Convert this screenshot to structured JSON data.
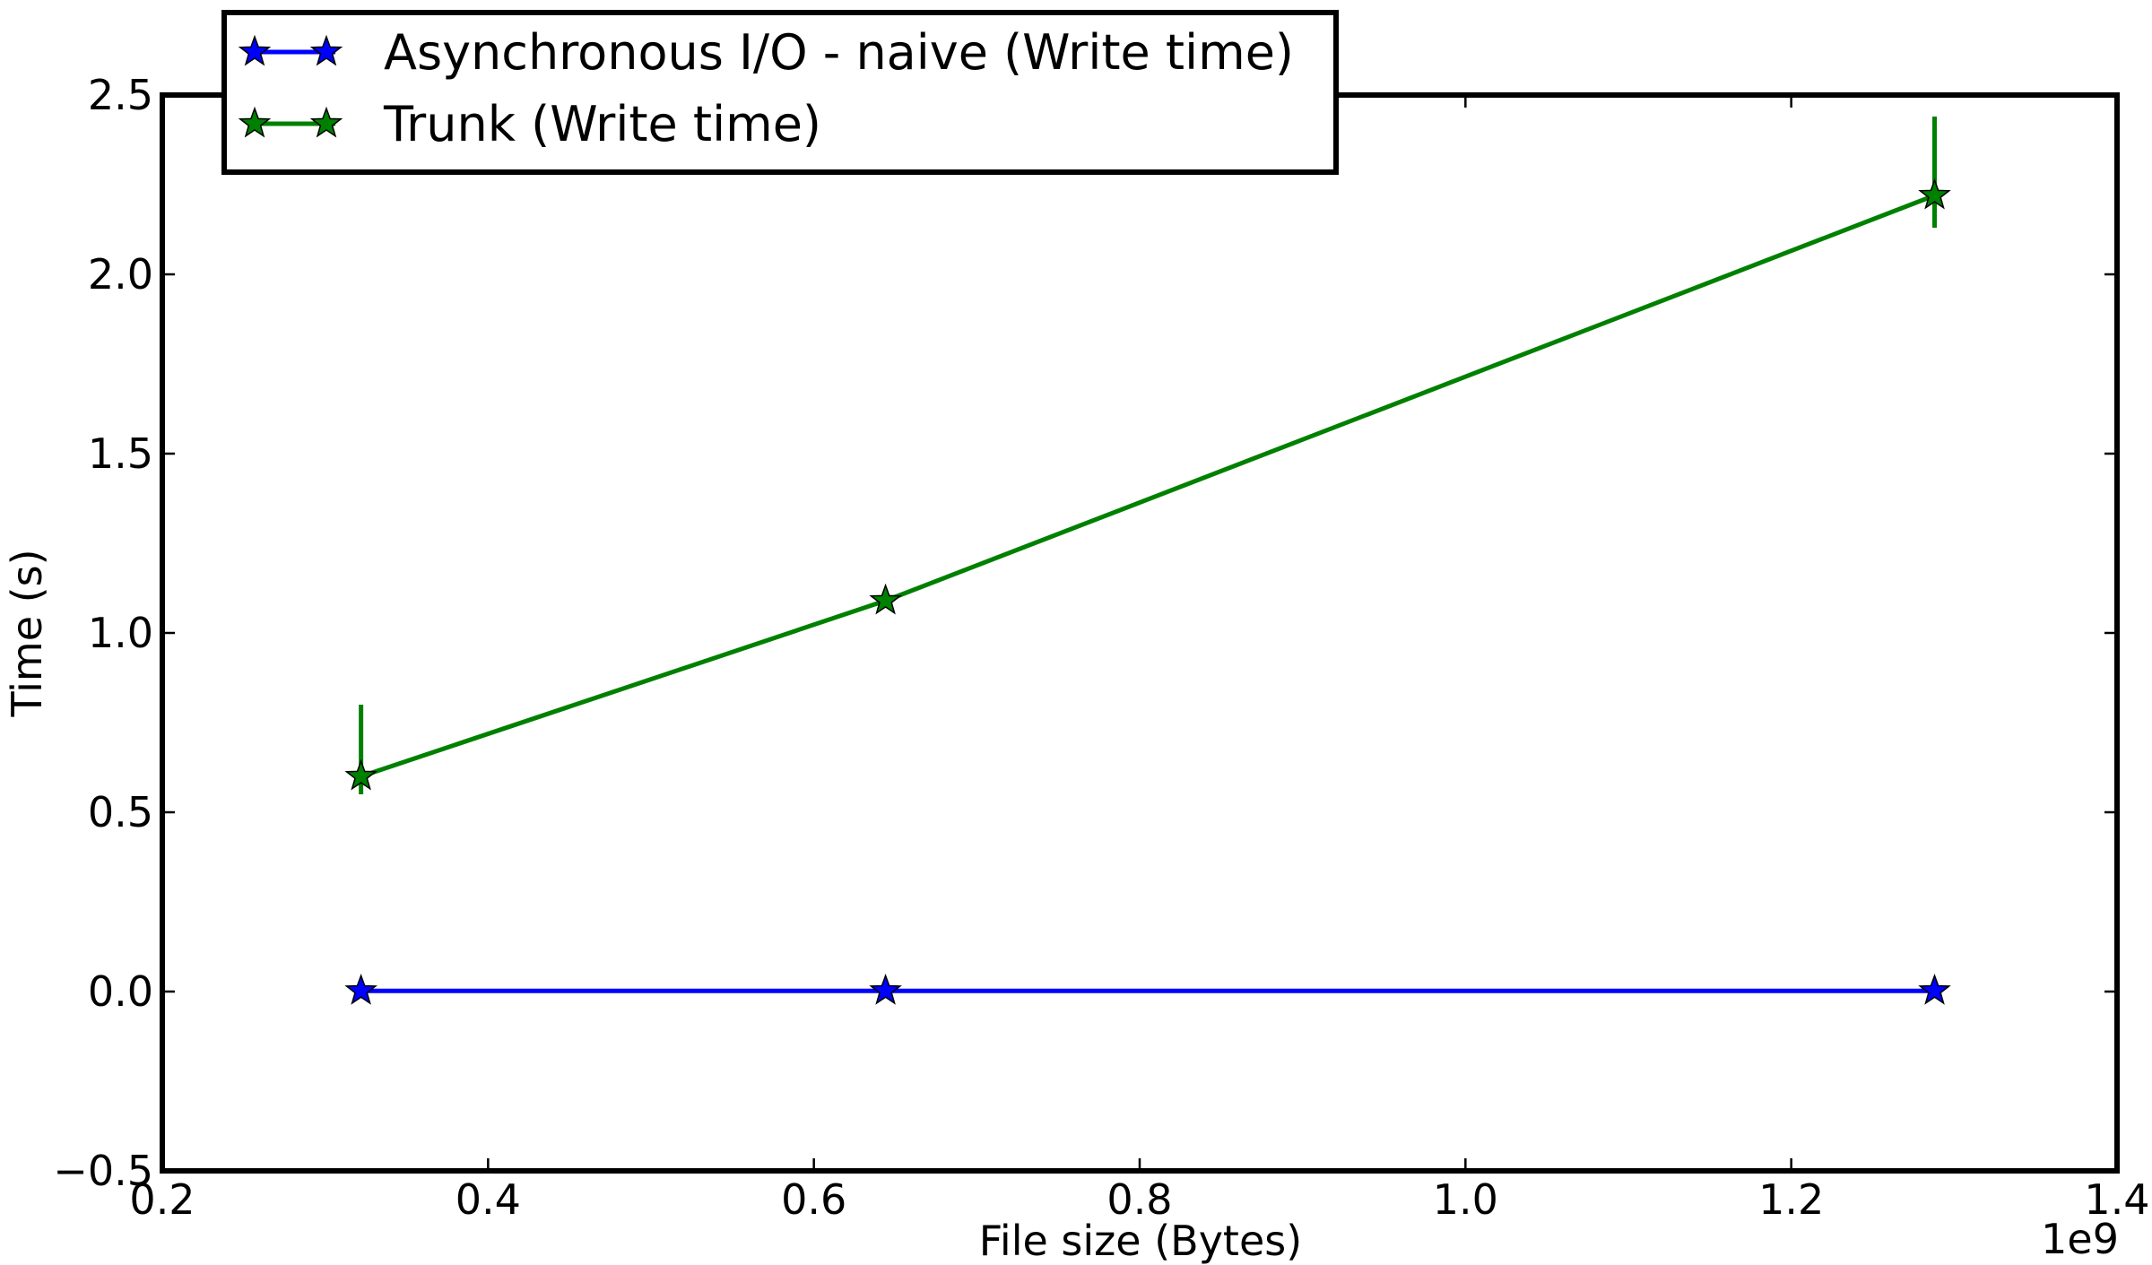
{
  "chart_data": {
    "type": "line",
    "xlabel": "File size (Bytes)",
    "ylabel": "Time (s)",
    "x_offset_label": "1e9",
    "xlim": [
      0.2,
      1.4
    ],
    "ylim": [
      -0.5,
      2.5
    ],
    "xticks": [
      0.2,
      0.4,
      0.6,
      0.8,
      1.0,
      1.2,
      1.4
    ],
    "xtick_labels": [
      "0.2",
      "0.4",
      "0.6",
      "0.8",
      "1.0",
      "1.2",
      "1.4"
    ],
    "yticks": [
      -0.5,
      0.0,
      0.5,
      1.0,
      1.5,
      2.0,
      2.5
    ],
    "ytick_labels": [
      "−0.5",
      "0.0",
      "0.5",
      "1.0",
      "1.5",
      "2.0",
      "2.5"
    ],
    "grid": false,
    "legend_position": "top-left",
    "series": [
      {
        "name": "Asynchronous I/O - naive (Write time)",
        "color": "#0000ff",
        "marker": "star",
        "x": [
          0.322,
          0.644,
          1.288
        ],
        "y": [
          0.002,
          0.002,
          0.002
        ],
        "error_low": [
          0,
          0,
          0
        ],
        "error_high": [
          0,
          0,
          0
        ]
      },
      {
        "name": "Trunk (Write time)",
        "color": "#008000",
        "marker": "star",
        "x": [
          0.322,
          0.644,
          1.288
        ],
        "y": [
          0.6,
          1.09,
          2.22
        ],
        "error_low": [
          0.05,
          0,
          0.09
        ],
        "error_high": [
          0.2,
          0,
          0.22
        ]
      }
    ]
  }
}
